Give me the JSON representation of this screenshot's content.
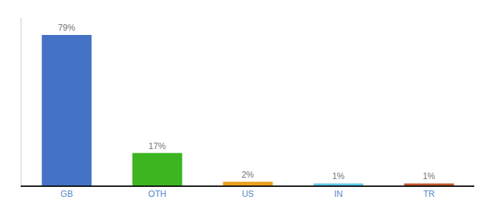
{
  "chart_data": {
    "type": "bar",
    "categories": [
      "GB",
      "OTH",
      "US",
      "IN",
      "TR"
    ],
    "values": [
      79,
      17,
      2,
      1,
      1
    ],
    "value_labels": [
      "79%",
      "17%",
      "2%",
      "1%",
      "1%"
    ],
    "data_labels": true,
    "colors": [
      "#4472c4",
      "#3cb520",
      "#e8a020",
      "#5bc8e8",
      "#c0522a"
    ],
    "ylim": [
      0,
      88
    ],
    "grid": false,
    "tick_labels": "x"
  }
}
